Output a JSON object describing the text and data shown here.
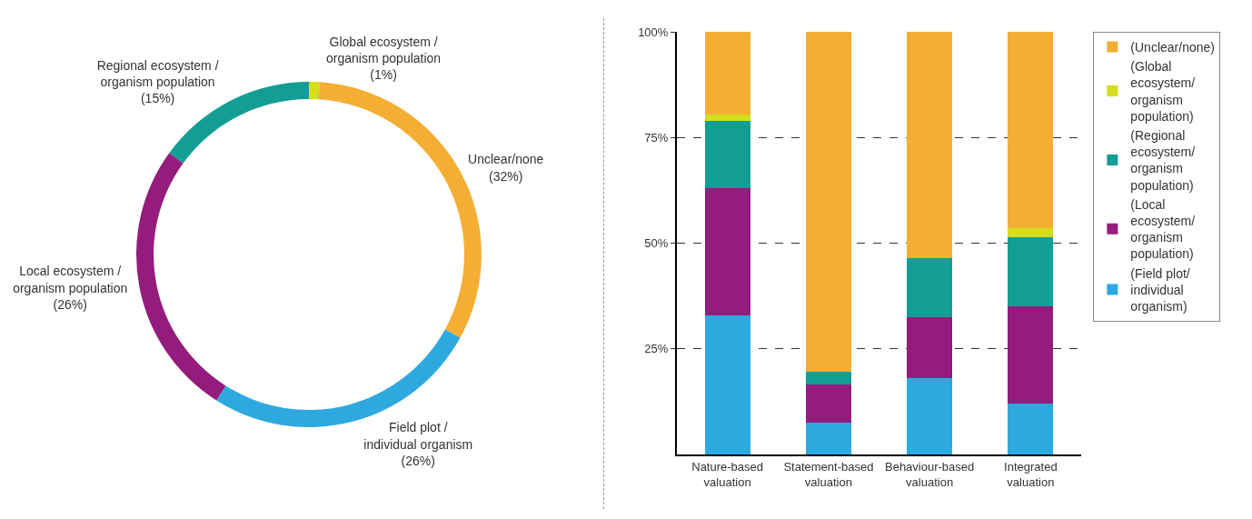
{
  "chart_data": [
    {
      "type": "donut",
      "categories": [
        "Global ecosystem / organism population",
        "Unclear/none",
        "Field plot / individual organism",
        "Local ecosystem / organism population",
        "Regional ecosystem / organism population"
      ],
      "values": [
        1,
        32,
        26,
        26,
        15
      ],
      "value_labels": [
        "(1%)",
        "(32%)",
        "(26%)",
        "(26%)",
        "(15%)"
      ],
      "colors": [
        "#d4de1c",
        "#f4ae33",
        "#2ea9e0",
        "#931c7c",
        "#139e95"
      ],
      "legend": false
    },
    {
      "type": "bar",
      "stacked": true,
      "categories": [
        "Nature-based valuation",
        "Statement-based valuation",
        "Behaviour-based valuation",
        "Integrated valuation"
      ],
      "series": [
        {
          "name": "(Field plot/ individual organism)",
          "color": "#2ea9e0",
          "values": [
            33,
            7.5,
            18,
            12
          ]
        },
        {
          "name": "(Local ecosystem/ organism population)",
          "color": "#931c7c",
          "values": [
            30,
            9,
            14.5,
            23
          ]
        },
        {
          "name": "(Regional ecosystem/ organism population)",
          "color": "#139e95",
          "values": [
            16,
            3,
            14,
            16.5
          ]
        },
        {
          "name": "(Global ecosystem/ organism population)",
          "color": "#d4de1c",
          "values": [
            1.5,
            0,
            0,
            2
          ]
        },
        {
          "name": "(Unclear/none)",
          "color": "#f4ae33",
          "values": [
            19.5,
            80.5,
            53.5,
            46.5
          ]
        }
      ],
      "ylim": [
        0,
        100
      ],
      "yticks": [
        {
          "value": 25,
          "label": "25%"
        },
        {
          "value": 50,
          "label": "50%"
        },
        {
          "value": 75,
          "label": "75%"
        },
        {
          "value": 100,
          "label": "100%"
        }
      ],
      "grid": "y",
      "legend": "right"
    }
  ]
}
